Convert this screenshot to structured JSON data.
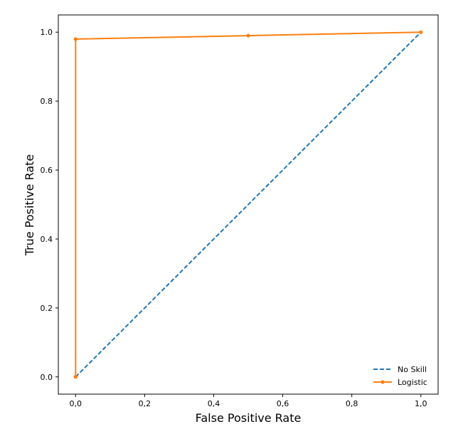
{
  "chart_data": {
    "type": "line",
    "title": "",
    "xlabel": "False Positive Rate",
    "ylabel": "True Positive Rate",
    "xlim": [
      -0.05,
      1.05
    ],
    "ylim": [
      -0.05,
      1.05
    ],
    "x_ticks": [
      "0,0",
      "0,2",
      "0,4",
      "0,6",
      "0,8",
      "1,0"
    ],
    "y_ticks": [
      "0.0",
      "0.2",
      "0.4",
      "0.6",
      "0.8",
      "1.0"
    ],
    "grid": false,
    "legend_position": "bottom-right",
    "series": [
      {
        "name": "No Skill",
        "x": [
          0,
          1
        ],
        "y": [
          0,
          1
        ],
        "style": "dashed",
        "marker": "none",
        "color": "#1f77b4"
      },
      {
        "name": "Logistic",
        "x": [
          0.0,
          0.0,
          0.5,
          1.0
        ],
        "y": [
          0.0,
          0.98,
          0.99,
          1.0
        ],
        "style": "solid",
        "marker": "dot",
        "color": "#ff7f0e"
      }
    ]
  }
}
